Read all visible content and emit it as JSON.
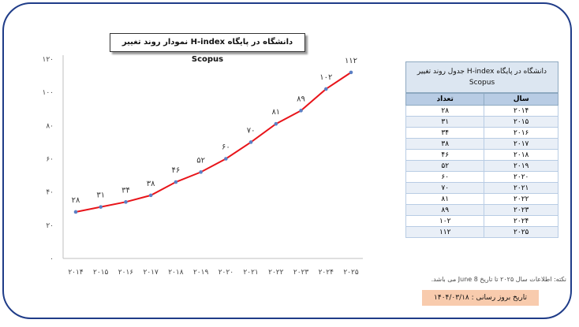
{
  "chart_data": {
    "type": "line",
    "title": "نمودار روند تغییر H-index دانشگاه در پایگاه Scopus",
    "categories": [
      "۲۰۱۴",
      "۲۰۱۵",
      "۲۰۱۶",
      "۲۰۱۷",
      "۲۰۱۸",
      "۲۰۱۹",
      "۲۰۲۰",
      "۲۰۲۱",
      "۲۰۲۲",
      "۲۰۲۳",
      "۲۰۲۴",
      "۲۰۲۵"
    ],
    "values": [
      28,
      31,
      34,
      38,
      46,
      52,
      60,
      70,
      81,
      89,
      102,
      112
    ],
    "value_labels": [
      "۲۸",
      "۳۱",
      "۳۴",
      "۳۸",
      "۴۶",
      "۵۲",
      "۶۰",
      "۷۰",
      "۸۱",
      "۸۹",
      "۱۰۲",
      "۱۱۲"
    ],
    "ylim": [
      0,
      120
    ],
    "yticks": [
      0,
      20,
      40,
      60,
      80,
      100,
      120
    ],
    "ytick_labels": [
      "۰",
      "۲۰",
      "۴۰",
      "۶۰",
      "۸۰",
      "۱۰۰",
      "۱۲۰"
    ],
    "grid": false,
    "legend": "none",
    "line_color": "#e8141a",
    "marker_color": "#5b7fc4"
  },
  "table": {
    "title": "جدول روند تغییر H-index دانشگاه در پایگاه Scopus",
    "headers": [
      "سال",
      "تعداد"
    ],
    "rows": [
      [
        "۲۰۱۴",
        "۲۸"
      ],
      [
        "۲۰۱۵",
        "۳۱"
      ],
      [
        "۲۰۱۶",
        "۳۴"
      ],
      [
        "۲۰۱۷",
        "۳۸"
      ],
      [
        "۲۰۱۸",
        "۴۶"
      ],
      [
        "۲۰۱۹",
        "۵۲"
      ],
      [
        "۲۰۲۰",
        "۶۰"
      ],
      [
        "۲۰۲۱",
        "۷۰"
      ],
      [
        "۲۰۲۲",
        "۸۱"
      ],
      [
        "۲۰۲۳",
        "۸۹"
      ],
      [
        "۲۰۲۴",
        "۱۰۲"
      ],
      [
        "۲۰۲۵",
        "۱۱۲"
      ]
    ]
  },
  "note": "نکته: اطلاعات سال ۲۰۲۵ تا تاریخ June 8 می باشد.",
  "update_label": "تاریخ بروز رسانی : ۱۴۰۴/۰۳/۱۸",
  "colors": {
    "frame": "#1f3c88",
    "table_header": "#b8cce4",
    "table_title_bg": "#dce6f1",
    "update_bg": "#f8cbad"
  }
}
